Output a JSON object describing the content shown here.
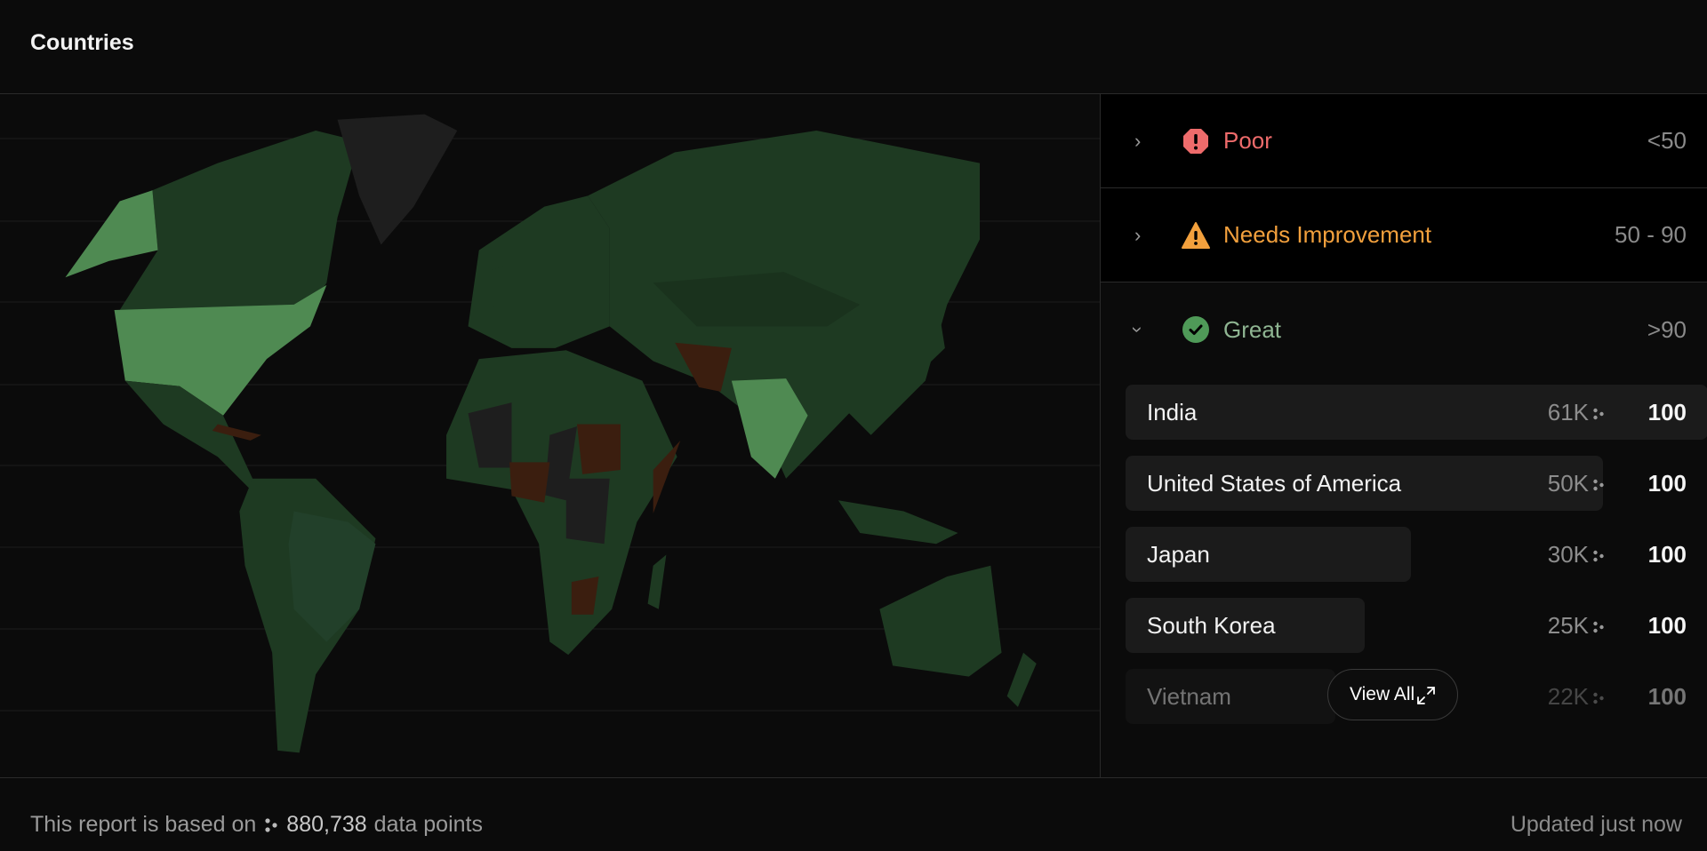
{
  "header": {
    "title": "Countries"
  },
  "colors": {
    "poor": "#ee6b6b",
    "needs_improvement": "#f2a03d",
    "great": "#4f9a58",
    "great_label": "#8fb592",
    "map_great_dark": "#1e3a22",
    "map_great_light": "#4f8a52",
    "map_poor": "#3b1e0f",
    "map_no_data": "#1e1e1e"
  },
  "categories": [
    {
      "label": "Poor",
      "range": "<50",
      "icon": "octagon-alert-icon",
      "expanded": false
    },
    {
      "label": "Needs Improvement",
      "range": "50 - 90",
      "icon": "triangle-warning-icon",
      "expanded": false
    },
    {
      "label": "Great",
      "range": ">90",
      "icon": "check-circle-icon",
      "expanded": true
    }
  ],
  "great_countries": [
    {
      "name": "India",
      "count": "61K",
      "score": "100",
      "share": 1.0
    },
    {
      "name": "United States of America",
      "count": "50K",
      "score": "100",
      "share": 0.82
    },
    {
      "name": "Japan",
      "count": "30K",
      "score": "100",
      "share": 0.49
    },
    {
      "name": "South Korea",
      "count": "25K",
      "score": "100",
      "share": 0.41
    },
    {
      "name": "Vietnam",
      "count": "22K",
      "score": "100",
      "share": 0.36
    }
  ],
  "view_all": {
    "label": "View All",
    "icon": "expand-icon"
  },
  "footer": {
    "prefix": "This report is based on",
    "data_points": "880,738",
    "suffix": "data points",
    "updated": "Updated just now"
  }
}
